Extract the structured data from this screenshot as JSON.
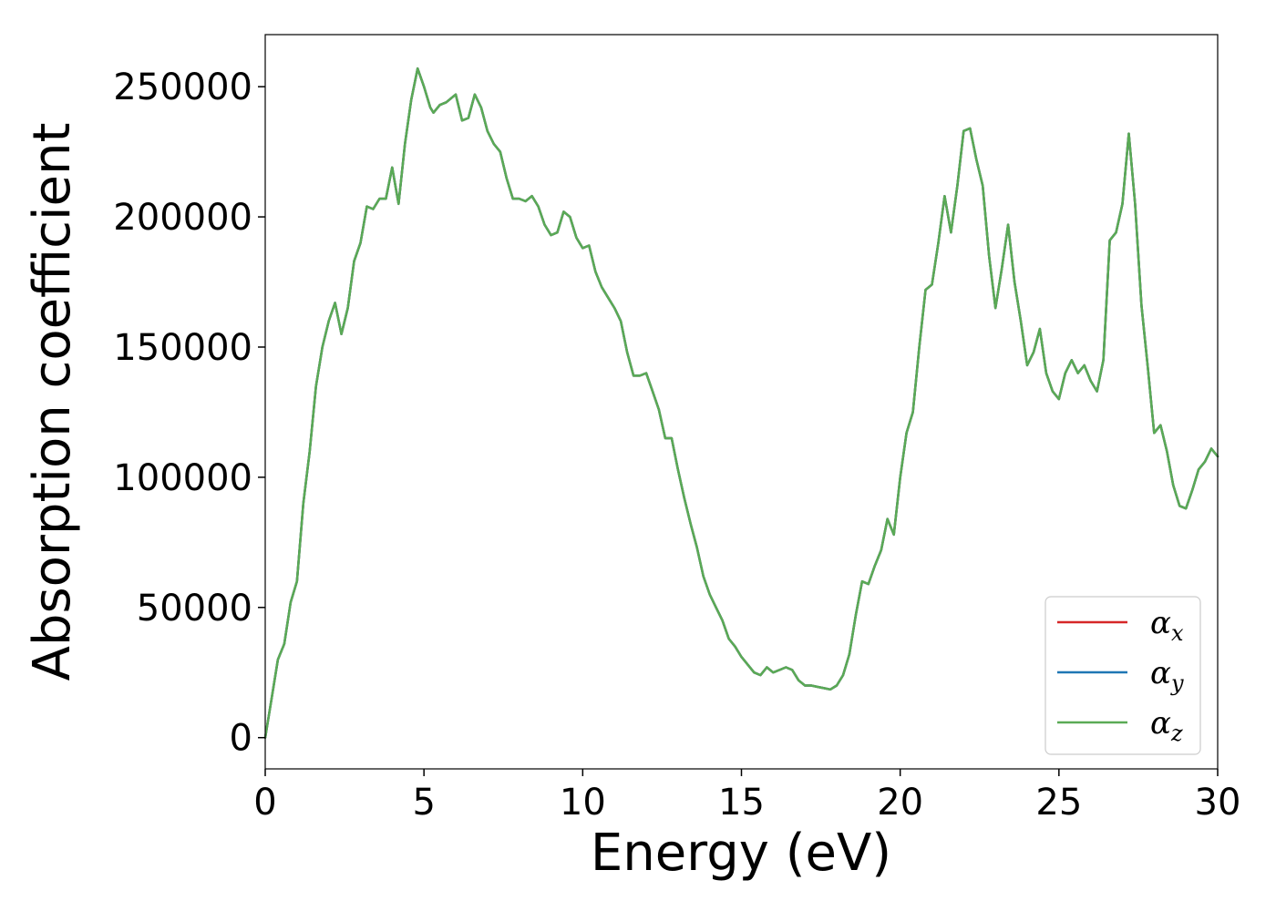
{
  "chart_data": {
    "type": "line",
    "title": "",
    "xlabel": "Energy (eV)",
    "ylabel": "Absorption coefficient",
    "xlim": [
      0,
      30
    ],
    "ylim": [
      -12000,
      270000
    ],
    "xticks": [
      0,
      5,
      10,
      15,
      20,
      25,
      30
    ],
    "xtick_labels": [
      "0",
      "5",
      "10",
      "15",
      "20",
      "25",
      "30"
    ],
    "yticks": [
      0,
      50000,
      100000,
      150000,
      200000,
      250000
    ],
    "ytick_labels": [
      "0",
      "50000",
      "100000",
      "150000",
      "200000",
      "250000"
    ],
    "grid": false,
    "legend_position": "bottom-right",
    "x": [
      0,
      0.2,
      0.4,
      0.6,
      0.8,
      1.0,
      1.2,
      1.4,
      1.6,
      1.8,
      2.0,
      2.2,
      2.4,
      2.6,
      2.8,
      3.0,
      3.2,
      3.4,
      3.6,
      3.8,
      4.0,
      4.2,
      4.4,
      4.6,
      4.8,
      5.0,
      5.2,
      5.3,
      5.5,
      5.7,
      6.0,
      6.2,
      6.4,
      6.6,
      6.8,
      7.0,
      7.2,
      7.4,
      7.6,
      7.8,
      8.0,
      8.2,
      8.4,
      8.6,
      8.8,
      9.0,
      9.2,
      9.4,
      9.6,
      9.8,
      10.0,
      10.2,
      10.4,
      10.6,
      10.8,
      11.0,
      11.2,
      11.4,
      11.6,
      11.8,
      12.0,
      12.2,
      12.4,
      12.6,
      12.8,
      13.0,
      13.2,
      13.4,
      13.6,
      13.8,
      14.0,
      14.2,
      14.4,
      14.6,
      14.8,
      15.0,
      15.2,
      15.4,
      15.6,
      15.8,
      16.0,
      16.2,
      16.4,
      16.6,
      16.8,
      17.0,
      17.2,
      17.4,
      17.6,
      17.8,
      18.0,
      18.2,
      18.4,
      18.6,
      18.8,
      19.0,
      19.2,
      19.4,
      19.6,
      19.8,
      20.0,
      20.2,
      20.4,
      20.6,
      20.8,
      21.0,
      21.2,
      21.4,
      21.6,
      21.8,
      22.0,
      22.2,
      22.4,
      22.6,
      22.8,
      23.0,
      23.2,
      23.4,
      23.6,
      23.8,
      24.0,
      24.2,
      24.4,
      24.6,
      24.8,
      25.0,
      25.2,
      25.4,
      25.6,
      25.8,
      26.0,
      26.2,
      26.4,
      26.6,
      26.8,
      27.0,
      27.2,
      27.4,
      27.6,
      27.8,
      28.0,
      28.2,
      28.4,
      28.6,
      28.8,
      29.0,
      29.2,
      29.4,
      29.6,
      29.8,
      30.0
    ],
    "series": [
      {
        "name": "αx",
        "color": "#d62728",
        "values": [
          0,
          15000,
          30000,
          36000,
          52000,
          60000,
          90000,
          110000,
          135000,
          150000,
          160000,
          167000,
          155000,
          165000,
          183000,
          190000,
          204000,
          203000,
          207000,
          207000,
          219000,
          205000,
          228000,
          245000,
          257000,
          250000,
          242000,
          240000,
          243000,
          244000,
          247000,
          237000,
          238000,
          247000,
          242000,
          233000,
          228000,
          225000,
          215000,
          207000,
          207000,
          206000,
          208000,
          204000,
          197000,
          193000,
          194000,
          202000,
          200000,
          192000,
          188000,
          189000,
          179000,
          173000,
          169000,
          165000,
          160000,
          148000,
          139000,
          139000,
          140000,
          133000,
          126000,
          115000,
          115000,
          103000,
          92000,
          82000,
          73000,
          62000,
          55000,
          50000,
          45000,
          38000,
          35000,
          31000,
          28000,
          25000,
          24000,
          27000,
          25000,
          26000,
          27000,
          26000,
          22000,
          20000,
          20000,
          19500,
          19000,
          18500,
          20000,
          24000,
          32000,
          47000,
          60000,
          59000,
          66000,
          72000,
          84000,
          78000,
          100000,
          117000,
          125000,
          150000,
          172000,
          174000,
          190000,
          208000,
          194000,
          212000,
          233000,
          234000,
          222000,
          212000,
          185000,
          165000,
          180000,
          197000,
          175000,
          160000,
          143000,
          148000,
          157000,
          140000,
          133000,
          130000,
          140000,
          145000,
          140000,
          143000,
          137000,
          133000,
          145000,
          191000,
          194000,
          205000,
          232000,
          205000,
          166000,
          142000,
          117000,
          120000,
          110000,
          97000,
          89000,
          88000,
          95000,
          103000,
          106000,
          111000,
          108000
        ]
      },
      {
        "name": "αy",
        "color": "#1f77b4",
        "values": [
          0,
          15000,
          30000,
          36000,
          52000,
          60000,
          90000,
          110000,
          135000,
          150000,
          160000,
          167000,
          155000,
          165000,
          183000,
          190000,
          204000,
          203000,
          207000,
          207000,
          219000,
          205000,
          228000,
          245000,
          257000,
          250000,
          242000,
          240000,
          243000,
          244000,
          247000,
          237000,
          238000,
          247000,
          242000,
          233000,
          228000,
          225000,
          215000,
          207000,
          207000,
          206000,
          208000,
          204000,
          197000,
          193000,
          194000,
          202000,
          200000,
          192000,
          188000,
          189000,
          179000,
          173000,
          169000,
          165000,
          160000,
          148000,
          139000,
          139000,
          140000,
          133000,
          126000,
          115000,
          115000,
          103000,
          92000,
          82000,
          73000,
          62000,
          55000,
          50000,
          45000,
          38000,
          35000,
          31000,
          28000,
          25000,
          24000,
          27000,
          25000,
          26000,
          27000,
          26000,
          22000,
          20000,
          20000,
          19500,
          19000,
          18500,
          20000,
          24000,
          32000,
          47000,
          60000,
          59000,
          66000,
          72000,
          84000,
          78000,
          100000,
          117000,
          125000,
          150000,
          172000,
          174000,
          190000,
          208000,
          194000,
          212000,
          233000,
          234000,
          222000,
          212000,
          185000,
          165000,
          180000,
          197000,
          175000,
          160000,
          143000,
          148000,
          157000,
          140000,
          133000,
          130000,
          140000,
          145000,
          140000,
          143000,
          137000,
          133000,
          145000,
          191000,
          194000,
          205000,
          232000,
          205000,
          166000,
          142000,
          117000,
          120000,
          110000,
          97000,
          89000,
          88000,
          95000,
          103000,
          106000,
          111000,
          108000
        ]
      },
      {
        "name": "αz",
        "color": "#5aaa55",
        "values": [
          0,
          15000,
          30000,
          36000,
          52000,
          60000,
          90000,
          110000,
          135000,
          150000,
          160000,
          167000,
          155000,
          165000,
          183000,
          190000,
          204000,
          203000,
          207000,
          207000,
          219000,
          205000,
          228000,
          245000,
          257000,
          250000,
          242000,
          240000,
          243000,
          244000,
          247000,
          237000,
          238000,
          247000,
          242000,
          233000,
          228000,
          225000,
          215000,
          207000,
          207000,
          206000,
          208000,
          204000,
          197000,
          193000,
          194000,
          202000,
          200000,
          192000,
          188000,
          189000,
          179000,
          173000,
          169000,
          165000,
          160000,
          148000,
          139000,
          139000,
          140000,
          133000,
          126000,
          115000,
          115000,
          103000,
          92000,
          82000,
          73000,
          62000,
          55000,
          50000,
          45000,
          38000,
          35000,
          31000,
          28000,
          25000,
          24000,
          27000,
          25000,
          26000,
          27000,
          26000,
          22000,
          20000,
          20000,
          19500,
          19000,
          18500,
          20000,
          24000,
          32000,
          47000,
          60000,
          59000,
          66000,
          72000,
          84000,
          78000,
          100000,
          117000,
          125000,
          150000,
          172000,
          174000,
          190000,
          208000,
          194000,
          212000,
          233000,
          234000,
          222000,
          212000,
          185000,
          165000,
          180000,
          197000,
          175000,
          160000,
          143000,
          148000,
          157000,
          140000,
          133000,
          130000,
          140000,
          145000,
          140000,
          143000,
          137000,
          133000,
          145000,
          191000,
          194000,
          205000,
          232000,
          205000,
          166000,
          142000,
          117000,
          120000,
          110000,
          97000,
          89000,
          88000,
          95000,
          103000,
          106000,
          111000,
          108000
        ]
      }
    ],
    "legend": [
      {
        "symbol": "α",
        "sub": "x",
        "color": "#d62728"
      },
      {
        "symbol": "α",
        "sub": "y",
        "color": "#1f77b4"
      },
      {
        "symbol": "α",
        "sub": "z",
        "color": "#5aaa55"
      }
    ]
  }
}
